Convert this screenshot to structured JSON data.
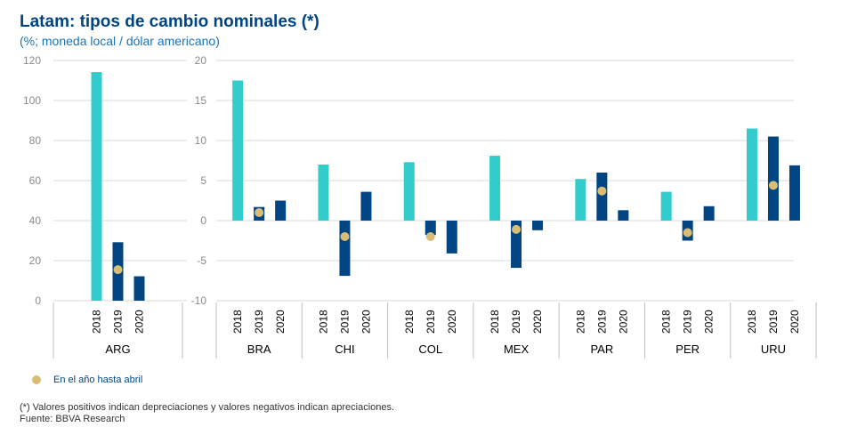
{
  "colors": {
    "y2018": "#33CCCC",
    "y2019": "#004481",
    "y2020": "#004481",
    "marker": "#D8BE75",
    "grid": "#d9d9d9",
    "axis_text": "#8a8a8a",
    "label_text": "#000000"
  },
  "chart_data": [
    {
      "type": "bar",
      "title": "Latam: tipos de cambio nominales (*)",
      "subtitle": "(%; moneda local / dólar americano)",
      "ylim": [
        0,
        120
      ],
      "yticks": [
        "0",
        "20",
        "40",
        "60",
        "80",
        "100",
        "120"
      ],
      "groups": [
        {
          "name": "ARG",
          "years": [
            "2018",
            "2019",
            "2020"
          ],
          "values": [
            114.2,
            29.2,
            12.2
          ],
          "marker": [
            null,
            15.5,
            null
          ]
        }
      ]
    },
    {
      "type": "bar",
      "ylim": [
        -10,
        20
      ],
      "yticks": [
        "-10",
        "-5",
        "0",
        "5",
        "10",
        "15",
        "20"
      ],
      "groups": [
        {
          "name": "BRA",
          "years": [
            "2018",
            "2019",
            "2020"
          ],
          "values": [
            17.5,
            1.7,
            2.5
          ],
          "marker": [
            null,
            1.0,
            null
          ]
        },
        {
          "name": "CHI",
          "years": [
            "2018",
            "2019",
            "2020"
          ],
          "values": [
            7.0,
            -6.9,
            3.6
          ],
          "marker": [
            null,
            -2.0,
            null
          ]
        },
        {
          "name": "COL",
          "years": [
            "2018",
            "2019",
            "2020"
          ],
          "values": [
            7.3,
            -1.8,
            -4.1
          ],
          "marker": [
            null,
            -2.0,
            null
          ]
        },
        {
          "name": "MEX",
          "years": [
            "2018",
            "2019",
            "2020"
          ],
          "values": [
            8.1,
            -5.9,
            -1.2
          ],
          "marker": [
            null,
            -1.1,
            null
          ]
        },
        {
          "name": "PAR",
          "years": [
            "2018",
            "2019",
            "2020"
          ],
          "values": [
            5.2,
            6.0,
            1.3
          ],
          "marker": [
            null,
            3.7,
            null
          ]
        },
        {
          "name": "PER",
          "years": [
            "2018",
            "2019",
            "2020"
          ],
          "values": [
            3.6,
            -2.5,
            1.8
          ],
          "marker": [
            null,
            -1.5,
            null
          ]
        },
        {
          "name": "URU",
          "years": [
            "2018",
            "2019",
            "2020"
          ],
          "values": [
            11.5,
            10.5,
            6.9
          ],
          "marker": [
            null,
            4.4,
            null
          ]
        }
      ]
    }
  ],
  "legend": {
    "marker_label": "En el año hasta abril"
  },
  "footnote": "(*) Valores positivos indican depreciaciones y valores negativos indican apreciaciones.",
  "source": "Fuente: BBVA Research"
}
